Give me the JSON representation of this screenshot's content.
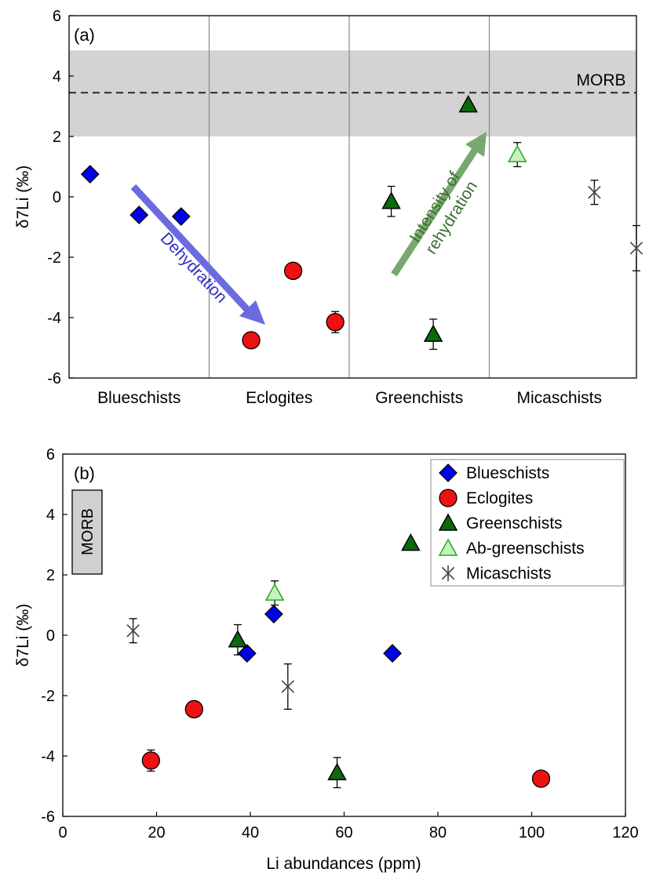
{
  "chart_data": [
    {
      "panel_label": "(a)",
      "type": "scatter",
      "ylabel": "δ7Li (‰)",
      "ylim": [
        -6,
        6
      ],
      "yticks": [
        "-6",
        "-4",
        "-2",
        "0",
        "2",
        "4",
        "6"
      ],
      "categories": [
        "Blueschists",
        "Eclogites",
        "Greenchists",
        "Micaschists"
      ],
      "morb": {
        "label": "MORB",
        "mean": 3.45,
        "band": [
          2.0,
          4.85
        ]
      },
      "colors": {
        "blueschists": "#0000ee",
        "eclogites": "#ee1111",
        "greenschists": "#0c6a0c",
        "ab_greenschists": "#c8f0c0",
        "ab_greenschists_edge": "#22aa22",
        "micaschists": "#444444",
        "morb_band": "#d3d3d3",
        "dehydration_arrow": "#6b6be0",
        "rehydration_arrow": "#78a870",
        "dehydration_text": "#2d2dc0",
        "rehydration_text": "#3c6e34"
      },
      "annotations": {
        "dehydration": "Dehydration",
        "rehydration_line1": "Intensity of",
        "rehydration_line2": "rehydration"
      },
      "series": [
        {
          "name": "Blueschists",
          "marker": "diamond",
          "points": [
            {
              "x": 0.15,
              "y": 0.75
            },
            {
              "x": 0.5,
              "y": -0.6
            },
            {
              "x": 0.8,
              "y": -0.65
            }
          ]
        },
        {
          "name": "Eclogites",
          "marker": "circle",
          "points": [
            {
              "x": 1.3,
              "y": -4.75
            },
            {
              "x": 1.6,
              "y": -2.45
            },
            {
              "x": 1.9,
              "y": -4.15,
              "err": 0.35
            }
          ]
        },
        {
          "name": "Greenschists",
          "marker": "triangle",
          "points": [
            {
              "x": 2.3,
              "y": -0.15,
              "err": 0.5
            },
            {
              "x": 2.6,
              "y": -4.55,
              "err": 0.5
            },
            {
              "x": 2.85,
              "y": 3.05
            }
          ]
        },
        {
          "name": "Ab-greenschists",
          "marker": "triangle-open",
          "points": [
            {
              "x": 3.2,
              "y": 1.4,
              "err": 0.4
            }
          ]
        },
        {
          "name": "Micaschists",
          "marker": "star",
          "points": [
            {
              "x": 3.75,
              "y": 0.15,
              "err": 0.4
            },
            {
              "x": 4.05,
              "y": -1.7,
              "err": 0.75
            }
          ]
        }
      ]
    },
    {
      "panel_label": "(b)",
      "type": "scatter",
      "xlabel": "Li abundances (ppm)",
      "ylabel": "δ7Li (‰)",
      "xlim": [
        0,
        120
      ],
      "ylim": [
        -6,
        6
      ],
      "xticks": [
        "0",
        "20",
        "40",
        "60",
        "80",
        "100",
        "120"
      ],
      "yticks": [
        "-6",
        "-4",
        "-2",
        "0",
        "2",
        "4",
        "6"
      ],
      "morb_label": "MORB",
      "legend_position": "top-right",
      "series": [
        {
          "name": "Blueschists",
          "marker": "diamond",
          "points": [
            {
              "x": 45,
              "y": 0.7
            },
            {
              "x": 39.3,
              "y": -0.6
            },
            {
              "x": 70.3,
              "y": -0.6
            }
          ]
        },
        {
          "name": "Eclogites",
          "marker": "circle",
          "points": [
            {
              "x": 18.8,
              "y": -4.15,
              "err": 0.35
            },
            {
              "x": 28,
              "y": -2.45
            },
            {
              "x": 102,
              "y": -4.75
            }
          ]
        },
        {
          "name": "Greenschists",
          "marker": "triangle",
          "points": [
            {
              "x": 37.3,
              "y": -0.15,
              "err": 0.5
            },
            {
              "x": 58.5,
              "y": -4.55,
              "err": 0.5
            },
            {
              "x": 74.2,
              "y": 3.05
            }
          ]
        },
        {
          "name": "Ab-greenschists",
          "marker": "triangle-open",
          "points": [
            {
              "x": 45.2,
              "y": 1.4,
              "err": 0.4
            }
          ]
        },
        {
          "name": "Micaschists",
          "marker": "star",
          "points": [
            {
              "x": 15,
              "y": 0.15,
              "err": 0.4
            },
            {
              "x": 48,
              "y": -1.7,
              "err": 0.75
            }
          ]
        }
      ]
    }
  ]
}
